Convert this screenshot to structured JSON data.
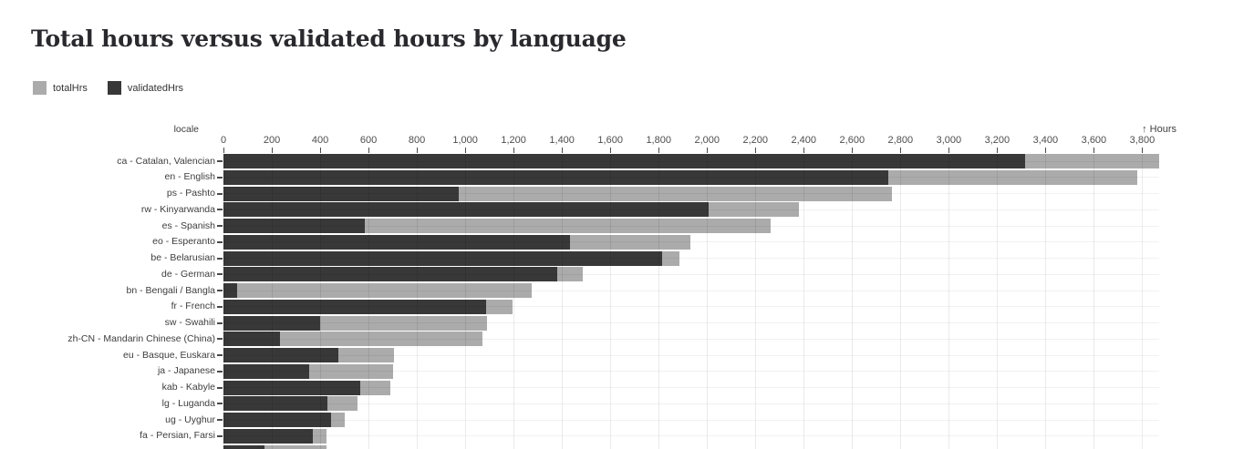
{
  "header": {
    "title": "Total hours versus validated hours by language"
  },
  "legend": {
    "items": [
      {
        "key": "totalHrs",
        "label": "totalHrs",
        "color": "#ababab"
      },
      {
        "key": "validatedHrs",
        "label": "validatedHrs",
        "color": "#383838"
      }
    ]
  },
  "chart_data": {
    "type": "bar",
    "orientation": "horizontal",
    "title": "Total hours versus validated hours by language",
    "xlabel": "↑ Hours",
    "ylabel": "locale",
    "xlim": [
      0,
      3870
    ],
    "grid": true,
    "legend_position": "top-left",
    "colors": {
      "totalHrs": "#ababab",
      "validatedHrs": "#383838"
    },
    "x_ticks": [
      0,
      200,
      400,
      600,
      800,
      1000,
      1200,
      1400,
      1600,
      1800,
      2000,
      2200,
      2400,
      2600,
      2800,
      3000,
      3200,
      3400,
      3600,
      3800
    ],
    "x_tick_labels": [
      "0",
      "200",
      "400",
      "600",
      "800",
      "1,000",
      "1,200",
      "1,400",
      "1,600",
      "1,800",
      "2,000",
      "2,200",
      "2,400",
      "2,600",
      "2,800",
      "3,000",
      "3,200",
      "3,400",
      "3,600",
      "3,800"
    ],
    "rows": [
      {
        "locale": "ca - Catalan, Valencian",
        "totalHrs": 3870,
        "validatedHrs": 3315
      },
      {
        "locale": "en - English",
        "totalHrs": 3780,
        "validatedHrs": 2750
      },
      {
        "locale": "ps - Pashto",
        "totalHrs": 2765,
        "validatedHrs": 975
      },
      {
        "locale": "rw - Kinyarwanda",
        "totalHrs": 2380,
        "validatedHrs": 2005
      },
      {
        "locale": "es - Spanish",
        "totalHrs": 2265,
        "validatedHrs": 585
      },
      {
        "locale": "eo - Esperanto",
        "totalHrs": 1930,
        "validatedHrs": 1435
      },
      {
        "locale": "be - Belarusian",
        "totalHrs": 1885,
        "validatedHrs": 1815
      },
      {
        "locale": "de - German",
        "totalHrs": 1485,
        "validatedHrs": 1380
      },
      {
        "locale": "bn - Bengali / Bangla",
        "totalHrs": 1275,
        "validatedHrs": 55
      },
      {
        "locale": "fr - French",
        "totalHrs": 1195,
        "validatedHrs": 1085
      },
      {
        "locale": "sw - Swahili",
        "totalHrs": 1090,
        "validatedHrs": 400
      },
      {
        "locale": "zh-CN - Mandarin Chinese (China)",
        "totalHrs": 1070,
        "validatedHrs": 235
      },
      {
        "locale": "eu - Basque, Euskara",
        "totalHrs": 705,
        "validatedHrs": 475
      },
      {
        "locale": "ja - Japanese",
        "totalHrs": 700,
        "validatedHrs": 355
      },
      {
        "locale": "kab - Kabyle",
        "totalHrs": 690,
        "validatedHrs": 565
      },
      {
        "locale": "lg - Luganda",
        "totalHrs": 555,
        "validatedHrs": 430
      },
      {
        "locale": "ug - Uyghur",
        "totalHrs": 500,
        "validatedHrs": 445
      },
      {
        "locale": "fa - Persian, Farsi",
        "totalHrs": 425,
        "validatedHrs": 370
      },
      {
        "locale": "",
        "totalHrs": 425,
        "validatedHrs": 170,
        "cutoff": true
      }
    ]
  }
}
